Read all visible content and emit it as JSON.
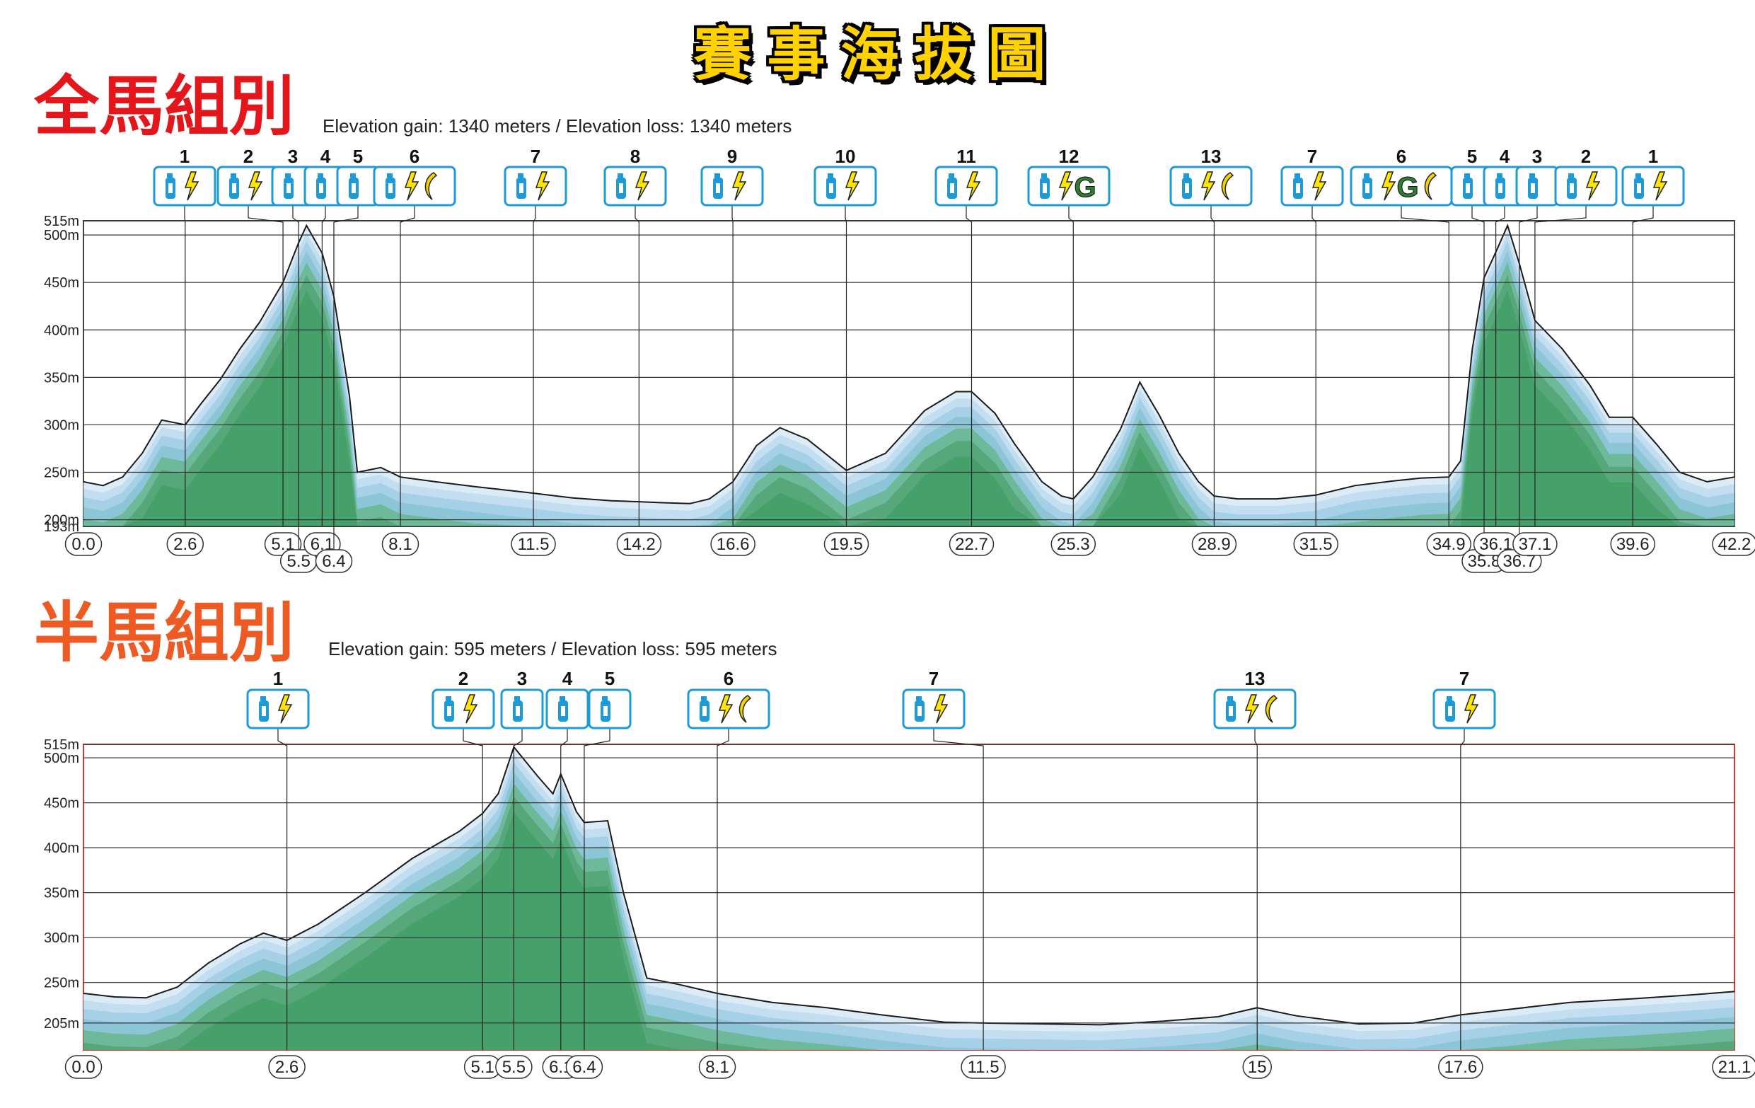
{
  "page_title": "賽事海拔圖",
  "colors": {
    "full_title": "#e3161c",
    "half_title": "#ee5a24",
    "icon_box": "#1e9ad6",
    "bottle": "#1e9ad6",
    "bolt": "#ffe500",
    "gel_g": "#2e7d32",
    "banana": "#f3d300",
    "fill_base": "#46a06a",
    "fill_light": "#dcecf6",
    "half_frame": "#d23a2a"
  },
  "chart_data": [
    {
      "type": "area",
      "id": "full",
      "title": "全馬組別",
      "subtitle": "Elevation gain: 1340 meters / Elevation loss: 1340 meters",
      "xlabel": "",
      "ylabel": "",
      "xlim": [
        0,
        42.2
      ],
      "ylim": [
        193,
        515
      ],
      "y_ticks": [
        {
          "value": 515,
          "label": "515m"
        },
        {
          "value": 500,
          "label": "500m"
        },
        {
          "value": 450,
          "label": "450m"
        },
        {
          "value": 400,
          "label": "400m"
        },
        {
          "value": 350,
          "label": "350m"
        },
        {
          "value": 300,
          "label": "300m"
        },
        {
          "value": 250,
          "label": "250m"
        },
        {
          "value": 200,
          "label": "200m"
        },
        {
          "value": 193,
          "label": "193m"
        }
      ],
      "grid": true,
      "profile": {
        "x": [
          0.0,
          0.5,
          1.0,
          1.5,
          2.0,
          2.6,
          3.0,
          3.5,
          4.0,
          4.5,
          5.1,
          5.5,
          5.7,
          6.1,
          6.4,
          6.8,
          7.0,
          7.6,
          8.1,
          9.0,
          10.0,
          11.5,
          12.5,
          13.5,
          14.2,
          14.8,
          15.5,
          16.0,
          16.6,
          17.2,
          17.8,
          18.5,
          19.5,
          20.5,
          21.5,
          22.3,
          22.7,
          23.3,
          23.8,
          24.5,
          25.0,
          25.3,
          25.8,
          26.5,
          27.0,
          27.5,
          28.0,
          28.5,
          28.9,
          29.5,
          30.5,
          31.5,
          32.5,
          33.5,
          34.2,
          34.9,
          35.2,
          35.5,
          35.8,
          36.1,
          36.4,
          36.7,
          37.1,
          37.8,
          38.5,
          39.0,
          39.6,
          40.2,
          40.8,
          41.5,
          42.2
        ],
        "y": [
          240,
          236,
          245,
          270,
          305,
          300,
          322,
          348,
          380,
          408,
          450,
          492,
          510,
          481,
          435,
          330,
          250,
          255,
          245,
          240,
          235,
          228,
          223,
          220,
          219,
          218,
          217,
          222,
          240,
          278,
          297,
          285,
          252,
          270,
          315,
          335,
          335,
          312,
          280,
          240,
          225,
          222,
          245,
          295,
          345,
          310,
          270,
          240,
          225,
          222,
          222,
          226,
          236,
          241,
          244,
          245,
          262,
          380,
          455,
          482,
          510,
          470,
          410,
          380,
          342,
          308,
          308,
          280,
          250,
          240,
          245
        ]
      },
      "x_markers": [
        {
          "label": "0.0",
          "value": 0.0,
          "row": 0
        },
        {
          "label": "2.6",
          "value": 2.6,
          "row": 0
        },
        {
          "label": "5.1",
          "value": 5.1,
          "row": 0
        },
        {
          "label": "5.5",
          "value": 5.5,
          "row": 1
        },
        {
          "label": "6.1",
          "value": 6.1,
          "row": 0
        },
        {
          "label": "6.4",
          "value": 6.4,
          "row": 1
        },
        {
          "label": "8.1",
          "value": 8.1,
          "row": 0
        },
        {
          "label": "11.5",
          "value": 11.5,
          "row": 0
        },
        {
          "label": "14.2",
          "value": 14.2,
          "row": 0
        },
        {
          "label": "16.6",
          "value": 16.6,
          "row": 0
        },
        {
          "label": "19.5",
          "value": 19.5,
          "row": 0
        },
        {
          "label": "22.7",
          "value": 22.7,
          "row": 0
        },
        {
          "label": "25.3",
          "value": 25.3,
          "row": 0
        },
        {
          "label": "28.9",
          "value": 28.9,
          "row": 0
        },
        {
          "label": "31.5",
          "value": 31.5,
          "row": 0
        },
        {
          "label": "34.9",
          "value": 34.9,
          "row": 0
        },
        {
          "label": "35.8",
          "value": 35.8,
          "row": 1
        },
        {
          "label": "36.1",
          "value": 36.1,
          "row": 0
        },
        {
          "label": "36.7",
          "value": 36.7,
          "row": 1
        },
        {
          "label": "37.1",
          "value": 37.1,
          "row": 0
        },
        {
          "label": "39.6",
          "value": 39.6,
          "row": 0
        },
        {
          "label": "42.2",
          "value": 42.2,
          "row": 0
        }
      ],
      "stations": [
        {
          "number": "1",
          "km": 2.6,
          "items": [
            "water",
            "energy"
          ]
        },
        {
          "number": "2",
          "km": 5.1,
          "items": [
            "water",
            "energy"
          ]
        },
        {
          "number": "3",
          "km": 5.5,
          "items": [
            "water"
          ]
        },
        {
          "number": "4",
          "km": 6.1,
          "items": [
            "water"
          ]
        },
        {
          "number": "5",
          "km": 6.4,
          "items": [
            "water"
          ]
        },
        {
          "number": "6",
          "km": 8.1,
          "items": [
            "water",
            "energy",
            "banana"
          ]
        },
        {
          "number": "7",
          "km": 11.5,
          "items": [
            "water",
            "energy"
          ]
        },
        {
          "number": "8",
          "km": 14.2,
          "items": [
            "water",
            "energy"
          ]
        },
        {
          "number": "9",
          "km": 16.6,
          "items": [
            "water",
            "energy"
          ]
        },
        {
          "number": "10",
          "km": 19.5,
          "items": [
            "water",
            "energy"
          ]
        },
        {
          "number": "11",
          "km": 22.7,
          "items": [
            "water",
            "energy"
          ]
        },
        {
          "number": "12",
          "km": 25.3,
          "items": [
            "water",
            "energy",
            "gel"
          ]
        },
        {
          "number": "13",
          "km": 28.9,
          "items": [
            "water",
            "energy",
            "banana"
          ]
        },
        {
          "number": "7",
          "km": 31.5,
          "items": [
            "water",
            "energy"
          ]
        },
        {
          "number": "6",
          "km": 34.9,
          "items": [
            "water",
            "energy",
            "gel",
            "banana"
          ]
        },
        {
          "number": "5",
          "km": 35.8,
          "items": [
            "water"
          ]
        },
        {
          "number": "4",
          "km": 36.1,
          "items": [
            "water"
          ]
        },
        {
          "number": "3",
          "km": 36.7,
          "items": [
            "water"
          ]
        },
        {
          "number": "2",
          "km": 37.1,
          "items": [
            "water",
            "energy"
          ]
        },
        {
          "number": "1",
          "km": 39.6,
          "items": [
            "water",
            "energy"
          ]
        }
      ]
    },
    {
      "type": "area",
      "id": "half",
      "title": "半馬組別",
      "subtitle": "Elevation gain: 595 meters / Elevation loss: 595 meters",
      "xlabel": "",
      "ylabel": "",
      "xlim": [
        0,
        21.1
      ],
      "ylim": [
        175,
        515
      ],
      "y_ticks": [
        {
          "value": 515,
          "label": "515m"
        },
        {
          "value": 500,
          "label": "500m"
        },
        {
          "value": 450,
          "label": "450m"
        },
        {
          "value": 400,
          "label": "400m"
        },
        {
          "value": 350,
          "label": "350m"
        },
        {
          "value": 300,
          "label": "300m"
        },
        {
          "value": 250,
          "label": "250m"
        },
        {
          "value": 205,
          "label": "205m"
        }
      ],
      "grid": true,
      "profile": {
        "x": [
          0.0,
          0.4,
          0.8,
          1.2,
          1.6,
          2.0,
          2.3,
          2.6,
          3.0,
          3.6,
          4.2,
          4.8,
          5.1,
          5.3,
          5.5,
          5.8,
          6.0,
          6.1,
          6.3,
          6.4,
          6.7,
          6.9,
          7.2,
          7.6,
          8.1,
          8.8,
          9.5,
          10.2,
          11.0,
          11.5,
          12.3,
          13.0,
          13.8,
          14.5,
          15.0,
          15.5,
          16.3,
          17.0,
          17.6,
          18.3,
          19.0,
          19.8,
          20.5,
          21.1
        ],
        "y": [
          238,
          234,
          233,
          245,
          272,
          293,
          305,
          297,
          315,
          350,
          388,
          418,
          438,
          460,
          512,
          480,
          460,
          482,
          440,
          428,
          430,
          350,
          255,
          248,
          238,
          228,
          222,
          214,
          206,
          205,
          204,
          203,
          207,
          212,
          222,
          213,
          204,
          205,
          214,
          221,
          228,
          232,
          236,
          240
        ]
      },
      "x_markers": [
        {
          "label": "0.0",
          "value": 0.0,
          "row": 0
        },
        {
          "label": "2.6",
          "value": 2.6,
          "row": 0
        },
        {
          "label": "5.1",
          "value": 5.1,
          "row": 0
        },
        {
          "label": "5.5",
          "value": 5.5,
          "row": 0
        },
        {
          "label": "6.1",
          "value": 6.1,
          "row": 0
        },
        {
          "label": "6.4",
          "value": 6.4,
          "row": 0
        },
        {
          "label": "8.1",
          "value": 8.1,
          "row": 0
        },
        {
          "label": "11.5",
          "value": 11.5,
          "row": 0
        },
        {
          "label": "15",
          "value": 15.0,
          "row": 0
        },
        {
          "label": "17.6",
          "value": 17.6,
          "row": 0
        },
        {
          "label": "21.1",
          "value": 21.1,
          "row": 0
        }
      ],
      "stations": [
        {
          "number": "1",
          "km": 2.6,
          "items": [
            "water",
            "energy"
          ]
        },
        {
          "number": "2",
          "km": 5.1,
          "items": [
            "water",
            "energy"
          ]
        },
        {
          "number": "3",
          "km": 5.5,
          "items": [
            "water"
          ]
        },
        {
          "number": "4",
          "km": 6.1,
          "items": [
            "water"
          ]
        },
        {
          "number": "5",
          "km": 6.4,
          "items": [
            "water"
          ]
        },
        {
          "number": "6",
          "km": 8.1,
          "items": [
            "water",
            "energy",
            "banana"
          ]
        },
        {
          "number": "7",
          "km": 11.5,
          "items": [
            "water",
            "energy"
          ]
        },
        {
          "number": "13",
          "km": 15.0,
          "items": [
            "water",
            "energy",
            "banana"
          ]
        },
        {
          "number": "7",
          "km": 17.6,
          "items": [
            "water",
            "energy"
          ]
        }
      ]
    }
  ]
}
